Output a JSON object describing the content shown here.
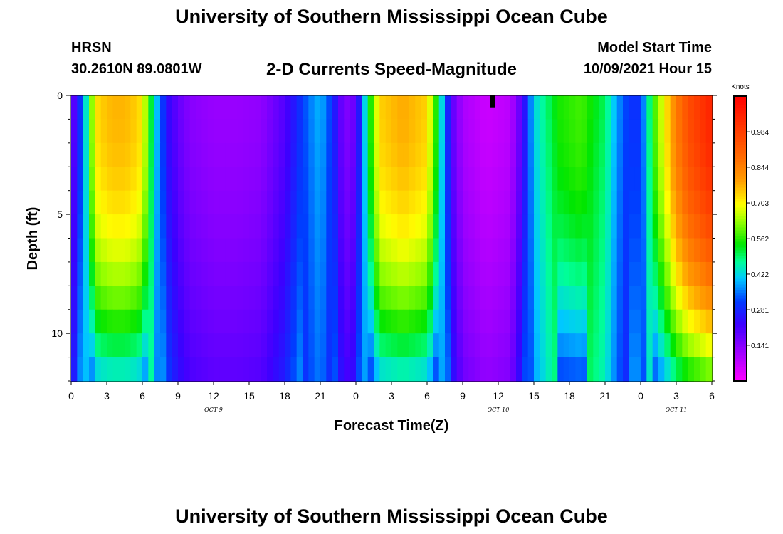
{
  "page": {
    "title_top": "University of Southern Mississippi Ocean Cube",
    "title_bottom": "University of Southern Mississippi Ocean Cube",
    "station": "HRSN",
    "coords": "30.2610N  89.0801W",
    "model_start_label": "Model Start Time",
    "model_start_value": "10/09/2021 Hour 15"
  },
  "chart_data": {
    "type": "heatmap",
    "title": "2-D Currents Speed-Magnitude",
    "xlabel": "Forecast Time(Z)",
    "ylabel": "Depth (ft)",
    "x_range_hours": [
      0,
      54
    ],
    "y_range_ft": [
      0,
      12
    ],
    "x_ticks": [
      {
        "h": 0,
        "label": "0"
      },
      {
        "h": 3,
        "label": "3"
      },
      {
        "h": 6,
        "label": "6"
      },
      {
        "h": 9,
        "label": "9"
      },
      {
        "h": 12,
        "label": "12"
      },
      {
        "h": 15,
        "label": "15"
      },
      {
        "h": 18,
        "label": "18"
      },
      {
        "h": 21,
        "label": "21"
      },
      {
        "h": 24,
        "label": "0"
      },
      {
        "h": 27,
        "label": "3"
      },
      {
        "h": 30,
        "label": "6"
      },
      {
        "h": 33,
        "label": "9"
      },
      {
        "h": 36,
        "label": "12"
      },
      {
        "h": 39,
        "label": "15"
      },
      {
        "h": 42,
        "label": "18"
      },
      {
        "h": 45,
        "label": "21"
      },
      {
        "h": 48,
        "label": "0"
      },
      {
        "h": 51,
        "label": "3"
      },
      {
        "h": 54,
        "label": "6"
      }
    ],
    "day_labels": [
      {
        "h": 12,
        "label": "OCT 9"
      },
      {
        "h": 36,
        "label": "OCT 10"
      },
      {
        "h": 51,
        "label": "OCT 11"
      }
    ],
    "y_ticks": [
      {
        "d": 0,
        "label": "0"
      },
      {
        "d": 5,
        "label": "5"
      },
      {
        "d": 10,
        "label": "10"
      }
    ],
    "colorbar": {
      "unit": "Knots",
      "range": [
        0.0,
        1.125
      ],
      "tick_values": [
        0.141,
        0.281,
        0.422,
        0.562,
        0.703,
        0.844,
        0.984
      ],
      "tick_labels": [
        "0.141",
        "0.281",
        "0.422",
        "0.562",
        "0.703",
        "0.844",
        "0.984"
      ]
    },
    "time_step_hours": 0.5,
    "depth_levels_ft": [
      0.5,
      1.5,
      2.5,
      3.5,
      4.5,
      5.5,
      6.5,
      7.5,
      8.5,
      9.5,
      10.5,
      11.5
    ],
    "speed_profile_surface_knots": [
      [
        0,
        0.15
      ],
      [
        1,
        0.35
      ],
      [
        2,
        0.72
      ],
      [
        3,
        0.76
      ],
      [
        4,
        0.77
      ],
      [
        5,
        0.76
      ],
      [
        6,
        0.72
      ],
      [
        7,
        0.45
      ],
      [
        8,
        0.25
      ],
      [
        9,
        0.18
      ],
      [
        10,
        0.14
      ],
      [
        12,
        0.12
      ],
      [
        14,
        0.12
      ],
      [
        16,
        0.13
      ],
      [
        18,
        0.2
      ],
      [
        20,
        0.35
      ],
      [
        21,
        0.4
      ],
      [
        22,
        0.3
      ],
      [
        23,
        0.14
      ],
      [
        24,
        0.18
      ],
      [
        25,
        0.5
      ],
      [
        26,
        0.74
      ],
      [
        28,
        0.78
      ],
      [
        30,
        0.74
      ],
      [
        31,
        0.5
      ],
      [
        32,
        0.2
      ],
      [
        33,
        0.1
      ],
      [
        35,
        0.06
      ],
      [
        37,
        0.08
      ],
      [
        38,
        0.2
      ],
      [
        39,
        0.42
      ],
      [
        41,
        0.55
      ],
      [
        43,
        0.58
      ],
      [
        45,
        0.5
      ],
      [
        46,
        0.38
      ],
      [
        47,
        0.3
      ],
      [
        48,
        0.3
      ],
      [
        49,
        0.55
      ],
      [
        51,
        0.85
      ],
      [
        52,
        0.95
      ],
      [
        53,
        1.0
      ],
      [
        54,
        1.05
      ]
    ],
    "dry_marker": {
      "h": 35.5,
      "depth_ft": [
        0.0,
        0.5
      ]
    }
  }
}
